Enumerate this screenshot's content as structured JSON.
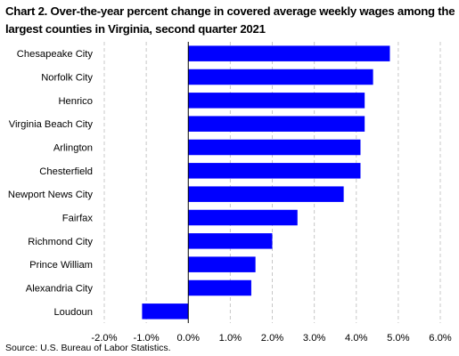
{
  "chart_data": {
    "type": "bar",
    "orientation": "horizontal",
    "title": "Chart 2. Over-the-year percent change in covered average weekly wages among the largest counties in Virginia, second quarter 2021",
    "categories": [
      "Chesapeake City",
      "Norfolk City",
      "Henrico",
      "Virginia Beach City",
      "Arlington",
      "Chesterfield",
      "Newport News City",
      "Fairfax",
      "Richmond City",
      "Prince William",
      "Alexandria City",
      "Loudoun"
    ],
    "values": [
      4.8,
      4.4,
      4.2,
      4.2,
      4.1,
      4.1,
      3.7,
      2.6,
      2.0,
      1.6,
      1.5,
      -1.1
    ],
    "xlim": [
      -2.0,
      6.0
    ],
    "x_ticks": [
      -2.0,
      -1.0,
      0.0,
      1.0,
      2.0,
      3.0,
      4.0,
      5.0,
      6.0
    ],
    "x_tick_labels": [
      "-2.0%",
      "-1.0%",
      "0.0%",
      "1.0%",
      "2.0%",
      "3.0%",
      "4.0%",
      "5.0%",
      "6.0%"
    ],
    "bar_color": "#0000FF",
    "grid": "vertical dashed",
    "legend": "none",
    "source": "Source:  U.S. Bureau of Labor Statistics."
  }
}
